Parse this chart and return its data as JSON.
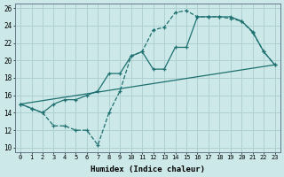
{
  "xlabel": "Humidex (Indice chaleur)",
  "bg_color": "#cce8e8",
  "grid_color": "#aed0d0",
  "line_color": "#1e7070",
  "xlim": [
    -0.5,
    23.5
  ],
  "ylim": [
    9.5,
    26.5
  ],
  "xticks": [
    0,
    1,
    2,
    3,
    4,
    5,
    6,
    7,
    8,
    9,
    10,
    11,
    12,
    13,
    14,
    15,
    16,
    17,
    18,
    19,
    20,
    21,
    22,
    23
  ],
  "yticks": [
    10,
    12,
    14,
    16,
    18,
    20,
    22,
    24,
    26
  ],
  "curve_solid_x": [
    0,
    1,
    2,
    3,
    4,
    5,
    6,
    7,
    8,
    9,
    10,
    11,
    12,
    13,
    14,
    15,
    16,
    17,
    18,
    19,
    20,
    21,
    22,
    23
  ],
  "curve_solid_y": [
    15.0,
    14.5,
    14.0,
    15.0,
    15.5,
    15.5,
    16.0,
    16.5,
    18.5,
    18.5,
    20.5,
    21.0,
    19.0,
    19.0,
    21.5,
    21.5,
    25.0,
    25.0,
    25.0,
    25.0,
    24.5,
    23.3,
    21.0,
    19.5
  ],
  "curve_jagged_x": [
    0,
    1,
    2,
    3,
    4,
    5,
    6,
    7,
    8,
    9,
    10,
    11,
    12,
    13,
    14,
    15,
    16,
    17,
    18,
    19,
    20,
    21,
    22,
    23
  ],
  "curve_jagged_y": [
    15.0,
    14.5,
    14.0,
    12.5,
    12.5,
    12.0,
    12.0,
    10.3,
    14.0,
    16.5,
    20.5,
    21.0,
    23.5,
    23.8,
    25.5,
    25.7,
    25.0,
    25.0,
    25.0,
    24.8,
    24.5,
    23.2,
    21.0,
    19.5
  ],
  "trend_x": [
    0,
    23
  ],
  "trend_y": [
    15.0,
    19.5
  ]
}
